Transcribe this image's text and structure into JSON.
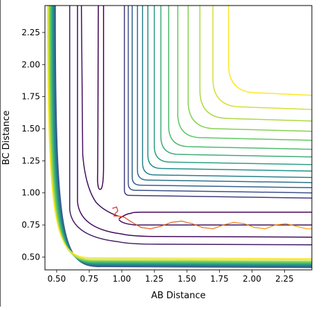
{
  "chart_data": {
    "type": "line",
    "chart_kind": "contour",
    "title": "",
    "xlabel": "AB Distance",
    "ylabel": "BC Distance",
    "xlim": [
      0.41,
      2.46
    ],
    "ylim": [
      0.4,
      2.46
    ],
    "xticks": [
      0.5,
      0.75,
      1.0,
      1.25,
      1.5,
      1.75,
      2.0,
      2.25
    ],
    "yticks": [
      0.5,
      0.75,
      1.0,
      1.25,
      1.5,
      1.75,
      2.0,
      2.25
    ],
    "xtick_labels": [
      "0.50",
      "0.75",
      "1.00",
      "1.25",
      "1.50",
      "1.75",
      "2.00",
      "2.25"
    ],
    "ytick_labels": [
      "0.50",
      "0.75",
      "1.00",
      "1.25",
      "1.50",
      "1.75",
      "2.00",
      "2.25"
    ],
    "grid": false,
    "legend": "none",
    "colormap": "viridis",
    "colormap_stops": [
      "#440154",
      "#3b528b",
      "#21918c",
      "#5ec962",
      "#fde725"
    ],
    "contours": {
      "outer_levels": [
        {
          "corner_x": 1.82,
          "corner_y": 1.78
        },
        {
          "corner_x": 1.7,
          "corner_y": 1.67
        },
        {
          "corner_x": 1.6,
          "corner_y": 1.58
        },
        {
          "corner_x": 1.51,
          "corner_y": 1.5
        },
        {
          "corner_x": 1.43,
          "corner_y": 1.43
        },
        {
          "corner_x": 1.36,
          "corner_y": 1.36
        },
        {
          "corner_x": 1.3,
          "corner_y": 1.3
        },
        {
          "corner_x": 1.25,
          "corner_y": 1.24
        },
        {
          "corner_x": 1.2,
          "corner_y": 1.19
        },
        {
          "corner_x": 1.16,
          "corner_y": 1.14
        },
        {
          "corner_x": 1.12,
          "corner_y": 1.1
        },
        {
          "corner_x": 1.08,
          "corner_y": 1.06
        },
        {
          "corner_x": 1.05,
          "corner_y": 1.02
        },
        {
          "corner_x": 1.02,
          "corner_y": 0.98
        }
      ],
      "inner_levels": [
        {
          "x": 0.49,
          "y": 0.42
        },
        {
          "x": 0.485,
          "y": 0.425
        },
        {
          "x": 0.48,
          "y": 0.43
        },
        {
          "x": 0.475,
          "y": 0.435
        },
        {
          "x": 0.47,
          "y": 0.44
        },
        {
          "x": 0.465,
          "y": 0.445
        },
        {
          "x": 0.46,
          "y": 0.45
        },
        {
          "x": 0.455,
          "y": 0.455
        },
        {
          "x": 0.45,
          "y": 0.46
        },
        {
          "x": 0.445,
          "y": 0.465
        },
        {
          "x": 0.44,
          "y": 0.47
        },
        {
          "x": 0.435,
          "y": 0.48
        },
        {
          "x": 0.43,
          "y": 0.49
        }
      ],
      "saddle_channel": {
        "left_x": 0.82,
        "dip_y": 1.03,
        "right_x": 0.85,
        "floor_y": 0.85,
        "x_end": 2.46
      },
      "outer_channel": {
        "left_x": 0.66,
        "corner_x": 1.0,
        "corner_y": 0.68,
        "floor_y": 0.66,
        "x_end": 2.46
      },
      "second_outer_channel": {
        "left_x": 0.6,
        "corner_x": 0.97,
        "corner_y": 0.62,
        "floor_y": 0.6,
        "x_end": 2.46
      }
    },
    "trajectory": {
      "color_start": "#d62728",
      "color_end": "#ffa500",
      "x": [
        0.93,
        0.96,
        0.97,
        0.95,
        0.94,
        0.97,
        1.02,
        1.08,
        1.15,
        1.22,
        1.3,
        1.38,
        1.46,
        1.54,
        1.62,
        1.7,
        1.78,
        1.86,
        1.94,
        2.02,
        2.1,
        2.18,
        2.26,
        2.34,
        2.42,
        2.46
      ],
      "y": [
        0.88,
        0.89,
        0.86,
        0.84,
        0.82,
        0.82,
        0.81,
        0.77,
        0.73,
        0.72,
        0.74,
        0.77,
        0.78,
        0.76,
        0.73,
        0.72,
        0.75,
        0.77,
        0.76,
        0.73,
        0.72,
        0.75,
        0.76,
        0.74,
        0.72,
        0.72
      ]
    }
  }
}
